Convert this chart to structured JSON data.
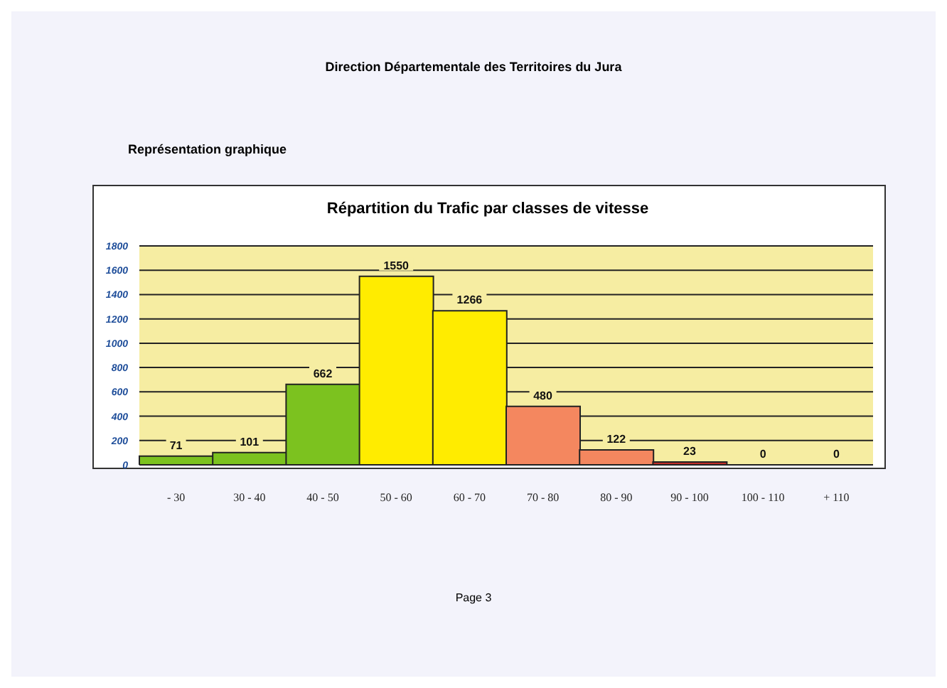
{
  "chart_data": {
    "type": "bar",
    "title": "Répartition du Trafic par classes de vitesse",
    "annotations": [
      "Direction Départementale des Territoires du Jura",
      "Représentation graphique",
      "Page 3"
    ],
    "categories": [
      "- 30",
      "30 - 40",
      "40 - 50",
      "50 - 60",
      "60 - 70",
      "70 - 80",
      "80 - 90",
      "90 - 100",
      "100 - 110",
      "+ 110"
    ],
    "values": [
      71,
      101,
      662,
      1550,
      1266,
      480,
      122,
      23,
      0,
      0
    ],
    "colors": [
      "#7cc21f",
      "#7cc21f",
      "#7cc21f",
      "#ffec00",
      "#ffec00",
      "#f4875f",
      "#f4875f",
      "#c0302a",
      "#c0302a",
      "#c0302a"
    ],
    "ylim": [
      0,
      1800
    ],
    "yticks": [
      0,
      200,
      400,
      600,
      800,
      1000,
      1200,
      1400,
      1600,
      1800
    ],
    "grid": "y",
    "data_labels": true
  }
}
